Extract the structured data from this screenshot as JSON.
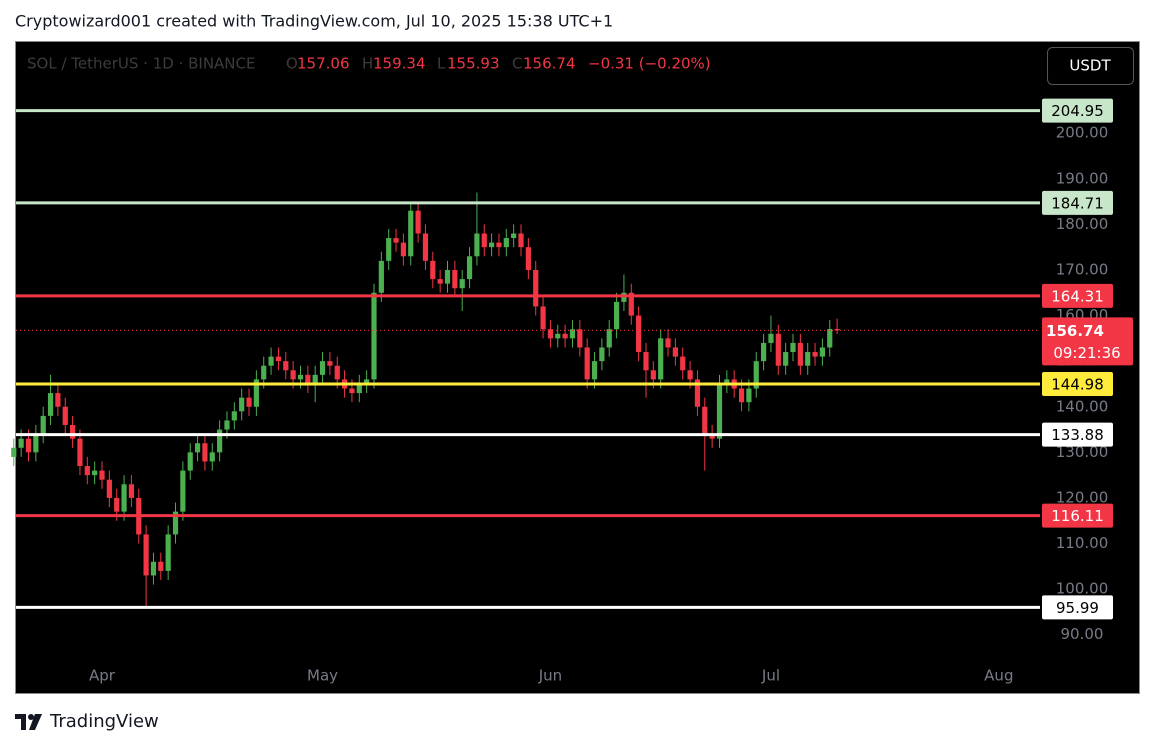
{
  "header": {
    "attribution": "Cryptowizard001 created with TradingView.com, Jul 10, 2025 15:38 UTC+1"
  },
  "chart_data": {
    "type": "candlestick",
    "symbol": "SOL / TetherUS · 1D · BINANCE",
    "ohlc_labels": [
      "O",
      "H",
      "L",
      "C"
    ],
    "change": "−0.31 (−0.20%)",
    "currency": "USDT",
    "countdown": "09:21:36",
    "open": [
      129,
      131,
      133,
      130,
      134,
      138,
      143,
      140,
      136,
      133,
      127,
      125,
      126,
      124,
      120,
      117,
      123,
      120,
      112,
      103,
      106,
      104,
      112,
      117,
      126,
      130,
      132,
      128,
      130,
      135,
      137,
      139,
      142,
      140,
      146,
      149,
      151,
      150,
      148,
      146,
      147,
      145,
      147,
      150,
      149,
      146,
      144,
      143,
      145,
      146,
      165,
      172,
      177,
      176,
      173,
      183,
      178,
      172,
      168,
      167,
      170,
      166,
      168,
      173,
      178,
      175,
      176,
      175,
      177,
      178,
      175,
      170,
      162,
      157,
      155,
      156,
      155,
      157,
      153,
      146,
      150,
      153,
      157,
      163,
      165,
      160,
      152,
      148,
      146,
      155,
      153,
      151,
      148,
      146,
      140,
      134,
      133,
      145,
      146,
      144,
      141,
      144,
      150,
      154,
      156,
      149,
      152,
      154,
      149,
      152,
      151,
      153,
      157.06
    ],
    "high": [
      133,
      135,
      135,
      136,
      140,
      147,
      145,
      142,
      138,
      135,
      129,
      128,
      128,
      126,
      122,
      125,
      125,
      122,
      114,
      108,
      108,
      114,
      119,
      128,
      132,
      134,
      134,
      132,
      137,
      139,
      141,
      144,
      144,
      148,
      151,
      153,
      153,
      152,
      150,
      149,
      149,
      149,
      152,
      152,
      151,
      148,
      146,
      147,
      148,
      167,
      174,
      179,
      179,
      178,
      185,
      185,
      180,
      174,
      170,
      172,
      172,
      170,
      175,
      187,
      180,
      178,
      178,
      179,
      180,
      180,
      177,
      172,
      164,
      159,
      158,
      158,
      159,
      159,
      155,
      152,
      155,
      159,
      165,
      169,
      167,
      162,
      154,
      150,
      157,
      157,
      155,
      153,
      150,
      148,
      142,
      136,
      147,
      148,
      148,
      146,
      146,
      152,
      156,
      160,
      158,
      154,
      156,
      156,
      154,
      154,
      155,
      159,
      159.34
    ],
    "low": [
      127,
      129,
      128,
      128,
      132,
      136,
      138,
      134,
      131,
      125,
      123,
      123,
      122,
      118,
      115,
      115,
      118,
      110,
      96,
      101,
      102,
      102,
      110,
      115,
      124,
      128,
      126,
      126,
      128,
      133,
      135,
      137,
      138,
      138,
      144,
      147,
      148,
      146,
      144,
      144,
      143,
      141,
      145,
      147,
      144,
      142,
      141,
      141,
      143,
      144,
      163,
      170,
      174,
      171,
      171,
      176,
      170,
      166,
      165,
      165,
      164,
      161,
      166,
      171,
      173,
      173,
      173,
      173,
      175,
      173,
      168,
      160,
      155,
      153,
      153,
      153,
      153,
      151,
      144,
      144,
      148,
      151,
      155,
      161,
      158,
      150,
      142,
      144,
      144,
      151,
      149,
      146,
      144,
      138,
      126,
      131,
      131,
      143,
      142,
      139,
      139,
      142,
      148,
      152,
      147,
      147,
      150,
      147,
      147,
      149,
      149,
      151,
      155.93
    ],
    "close": [
      131,
      133,
      130,
      134,
      138,
      143,
      140,
      136,
      133,
      127,
      125,
      126,
      124,
      120,
      117,
      123,
      120,
      112,
      103,
      106,
      104,
      112,
      117,
      126,
      130,
      132,
      128,
      130,
      135,
      137,
      139,
      142,
      140,
      146,
      149,
      151,
      150,
      148,
      146,
      147,
      145,
      147,
      150,
      149,
      146,
      144,
      143,
      145,
      146,
      165,
      172,
      177,
      176,
      173,
      183,
      178,
      172,
      168,
      167,
      170,
      166,
      168,
      173,
      178,
      175,
      176,
      175,
      177,
      178,
      175,
      170,
      162,
      157,
      155,
      156,
      155,
      157,
      153,
      146,
      150,
      153,
      157,
      163,
      165,
      160,
      152,
      148,
      146,
      155,
      153,
      151,
      148,
      146,
      140,
      134,
      133,
      145,
      146,
      144,
      141,
      144,
      150,
      154,
      156,
      149,
      152,
      154,
      149,
      152,
      151,
      153,
      157.05,
      156.74
    ],
    "up_color": "#4caf50",
    "down_color": "#f23645",
    "last_price_color": "#f23645",
    "xlim": [
      0.3,
      139.6
    ],
    "xticks": [
      {
        "value": 12,
        "label": "Apr"
      },
      {
        "value": 42,
        "label": "May"
      },
      {
        "value": 73,
        "label": "Jun"
      },
      {
        "value": 103,
        "label": "Jul"
      },
      {
        "value": 134,
        "label": "Aug"
      }
    ],
    "ylim": [
      77,
      220
    ],
    "yticks": [
      {
        "value": 90,
        "label": "90.00"
      },
      {
        "value": 100,
        "label": "100.00"
      },
      {
        "value": 110,
        "label": "110.00"
      },
      {
        "value": 120,
        "label": "120.00"
      },
      {
        "value": 130,
        "label": "130.00"
      },
      {
        "value": 140,
        "label": "140.00"
      },
      {
        "value": 150,
        "label": "150.00"
      },
      {
        "value": 160,
        "label": "160.00"
      },
      {
        "value": 170,
        "label": "170.00"
      },
      {
        "value": 180,
        "label": "180.00"
      },
      {
        "value": 190,
        "label": "190.00"
      },
      {
        "value": 200,
        "label": "200.00"
      }
    ],
    "levels": [
      {
        "value": 204.95,
        "color": "#c8e6c9",
        "text_color": "#000000"
      },
      {
        "value": 184.71,
        "color": "#c8e6c9",
        "text_color": "#000000"
      },
      {
        "value": 164.31,
        "color": "#f23645",
        "text_color": "#ffffff"
      },
      {
        "value": 144.98,
        "color": "#ffeb3b",
        "text_color": "#000000"
      },
      {
        "value": 133.88,
        "color": "#ffffff",
        "text_color": "#000000"
      },
      {
        "value": 116.11,
        "color": "#f23645",
        "text_color": "#ffffff"
      },
      {
        "value": 95.99,
        "color": "#ffffff",
        "text_color": "#000000"
      }
    ]
  },
  "footer": {
    "logo": "TradingView"
  }
}
